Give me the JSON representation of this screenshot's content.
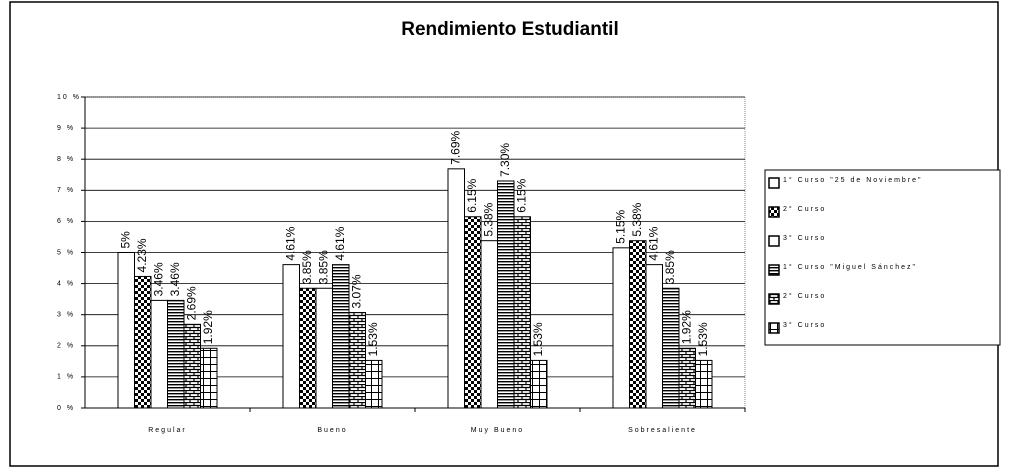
{
  "chart_data": {
    "type": "bar",
    "title": "Rendimiento Estudiantil",
    "categories": [
      "Regular",
      "Bueno",
      "Muy Bueno",
      "Sobresaliente"
    ],
    "series": [
      {
        "name": "1° Curso \"25 de Noviembre\"",
        "color": "#ffffff",
        "pattern": "none",
        "values": [
          5,
          4.61,
          7.69,
          5.15
        ],
        "value_labels": [
          "5%",
          "4.61%",
          "7.69%",
          "5.15%"
        ]
      },
      {
        "name": "2° Curso",
        "color": "#000000",
        "pattern": "checker",
        "values": [
          4.23,
          3.85,
          6.15,
          5.38
        ],
        "value_labels": [
          "4.23%",
          "3.85%",
          "6.15%",
          "5.38%"
        ]
      },
      {
        "name": "3° Curso",
        "color": "#ffffff",
        "pattern": "none",
        "values": [
          3.46,
          3.85,
          5.38,
          4.61
        ],
        "value_labels": [
          "3.46%",
          "3.85%",
          "5.38%",
          "4.61%"
        ]
      },
      {
        "name": "1° Curso \"Miguel Sánchez\"",
        "color": "#000000",
        "pattern": "hlines",
        "values": [
          3.46,
          4.61,
          7.3,
          3.85
        ],
        "value_labels": [
          "3.46%",
          "4.61%",
          "7.30%",
          "3.85%"
        ]
      },
      {
        "name": "2° Curso",
        "color": "#000000",
        "pattern": "brick",
        "values": [
          2.69,
          3.07,
          6.15,
          1.92
        ],
        "value_labels": [
          "2.69%",
          "3.07%",
          "6.15%",
          "1.92%"
        ]
      },
      {
        "name": "3° Curso",
        "color": "#000000",
        "pattern": "grid",
        "values": [
          1.92,
          1.53,
          1.53,
          1.53
        ],
        "value_labels": [
          "1.92%",
          "1.53%",
          "1.53%",
          "1.53%"
        ]
      }
    ],
    "ylim": [
      0,
      10
    ],
    "yticks": [
      {
        "value": 0,
        "label": "0 %"
      },
      {
        "value": 1,
        "label": "1 %"
      },
      {
        "value": 2,
        "label": "2 %"
      },
      {
        "value": 3,
        "label": "3 %"
      },
      {
        "value": 4,
        "label": "4 %"
      },
      {
        "value": 5,
        "label": "5 %"
      },
      {
        "value": 6,
        "label": "6 %"
      },
      {
        "value": 7,
        "label": "7 %"
      },
      {
        "value": 8,
        "label": "8 %"
      },
      {
        "value": 9,
        "label": "9 %"
      },
      {
        "value": 10,
        "label": "10 %"
      }
    ],
    "grid": true,
    "legend": "right"
  }
}
